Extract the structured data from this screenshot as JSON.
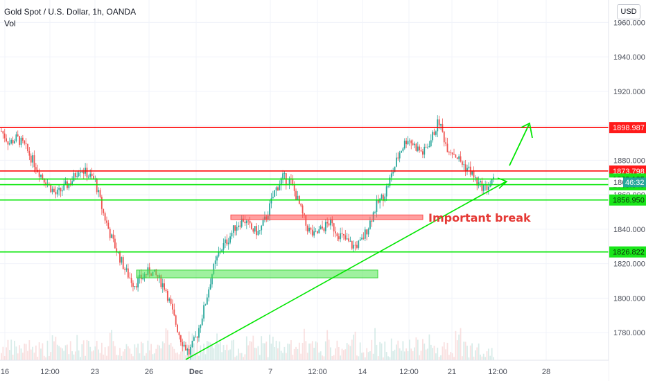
{
  "legend": {
    "symbol_line": "Gold Spot / U.S. Dollar, 1h, OANDA",
    "volume_label": "Vol"
  },
  "currency_button": "USD",
  "colors": {
    "up": "#26a69a",
    "down": "#ef5350",
    "support": "#00e600",
    "resistance": "#ff0000",
    "grid": "#f0f3fa",
    "axis_text": "#4a4e59"
  },
  "chart_data": {
    "type": "candlestick",
    "title": "Gold Spot / U.S. Dollar, 1h, OANDA",
    "xlabel": "",
    "ylabel": "",
    "ylim": [
      1764,
      1973
    ],
    "grid": true,
    "x_ticks": [
      "16",
      "12:00",
      "23",
      "26",
      "Dec",
      "7",
      "12:00",
      "14",
      "12:00",
      "21",
      "12:00",
      "28"
    ],
    "y_ticks": [
      1780.0,
      1800.0,
      1820.0,
      1840.0,
      1860.0,
      1880.0,
      1900.0,
      1920.0,
      1940.0,
      1960.0
    ],
    "y_tick_labels": [
      "1780.000",
      "1800.000",
      "1820.000",
      "1840.000",
      "1860.000",
      "1880.000",
      "1900.000",
      "1920.000",
      "1940.000",
      "1960.000"
    ],
    "price_path": [
      1897,
      1890,
      1893,
      1888,
      1880,
      1872,
      1866,
      1860,
      1864,
      1868,
      1876,
      1872,
      1868,
      1850,
      1836,
      1825,
      1815,
      1808,
      1812,
      1816,
      1812,
      1806,
      1790,
      1776,
      1768,
      1778,
      1795,
      1815,
      1828,
      1834,
      1842,
      1846,
      1840,
      1838,
      1848,
      1862,
      1870,
      1868,
      1856,
      1842,
      1836,
      1840,
      1844,
      1838,
      1834,
      1830,
      1832,
      1842,
      1854,
      1860,
      1872,
      1885,
      1893,
      1888,
      1884,
      1892,
      1903,
      1888,
      1884,
      1878,
      1874,
      1866,
      1864,
      1868
    ],
    "horizontal_levels": [
      {
        "price": 1898.987,
        "label": "1898.987",
        "color": "#ff0000"
      },
      {
        "price": 1873.798,
        "label": "1873.798",
        "color": "#ff0000"
      },
      {
        "price": 1869.135,
        "label": "1869.135",
        "color": "#00e600"
      },
      {
        "price": 1865.849,
        "label": "1865.849",
        "color": "#00e600"
      },
      {
        "price": 1856.95,
        "label": "1856.950",
        "color": "#00e600"
      },
      {
        "price": 1826.822,
        "label": "1826.822",
        "color": "#00e600"
      }
    ],
    "current_price": {
      "label": "1868.4",
      "countdown": "46:32"
    },
    "zones": [
      {
        "type": "resistance-box",
        "price_low": 1845.6,
        "price_high": 1848.3
      },
      {
        "type": "support-box",
        "price_low": 1811.8,
        "price_high": 1816.3
      }
    ],
    "annotations": [
      {
        "text": "Important break",
        "color": "#e53935"
      }
    ]
  }
}
